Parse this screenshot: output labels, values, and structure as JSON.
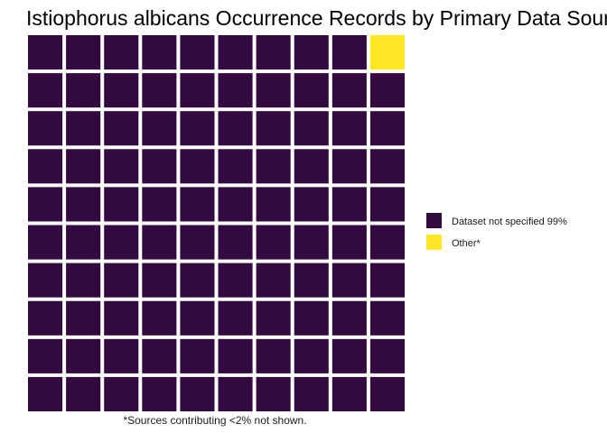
{
  "chart_data": {
    "type": "waffle",
    "title": "Istiophorus albicans Occurrence Records by Primary Data Source",
    "caption": "*Sources contributing <2% not shown.",
    "grid": {
      "rows": 10,
      "cols": 10
    },
    "series": [
      {
        "name": "Dataset not specified 99%",
        "cells": 99,
        "color": "#330A3F"
      },
      {
        "name": "Other*",
        "cells": 1,
        "color": "#FDE725"
      }
    ],
    "fill_order": "column-major from bottom-left, right-to-left columns ending top-right",
    "legend_position": "right"
  }
}
